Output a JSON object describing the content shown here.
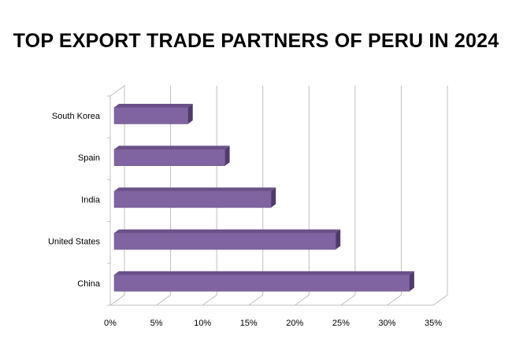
{
  "chart_data": {
    "type": "bar",
    "orientation": "horizontal",
    "style": "3d",
    "title": "TOP EXPORT TRADE PARTNERS OF PERU IN 2024",
    "categories": [
      "China",
      "United States",
      "India",
      "Spain",
      "South Korea"
    ],
    "values": [
      32,
      24,
      17,
      12,
      8
    ],
    "value_unit": "%",
    "xlim": [
      0,
      35
    ],
    "xticks": [
      "0%",
      "5%",
      "10%",
      "15%",
      "20%",
      "25%",
      "30%",
      "35%"
    ],
    "grid": true,
    "legend": "none",
    "colors": {
      "bar": "#8064A2",
      "bar_top": "#6B5189",
      "bar_side": "#4F3B6B",
      "grid": "#BFBFBF"
    }
  }
}
